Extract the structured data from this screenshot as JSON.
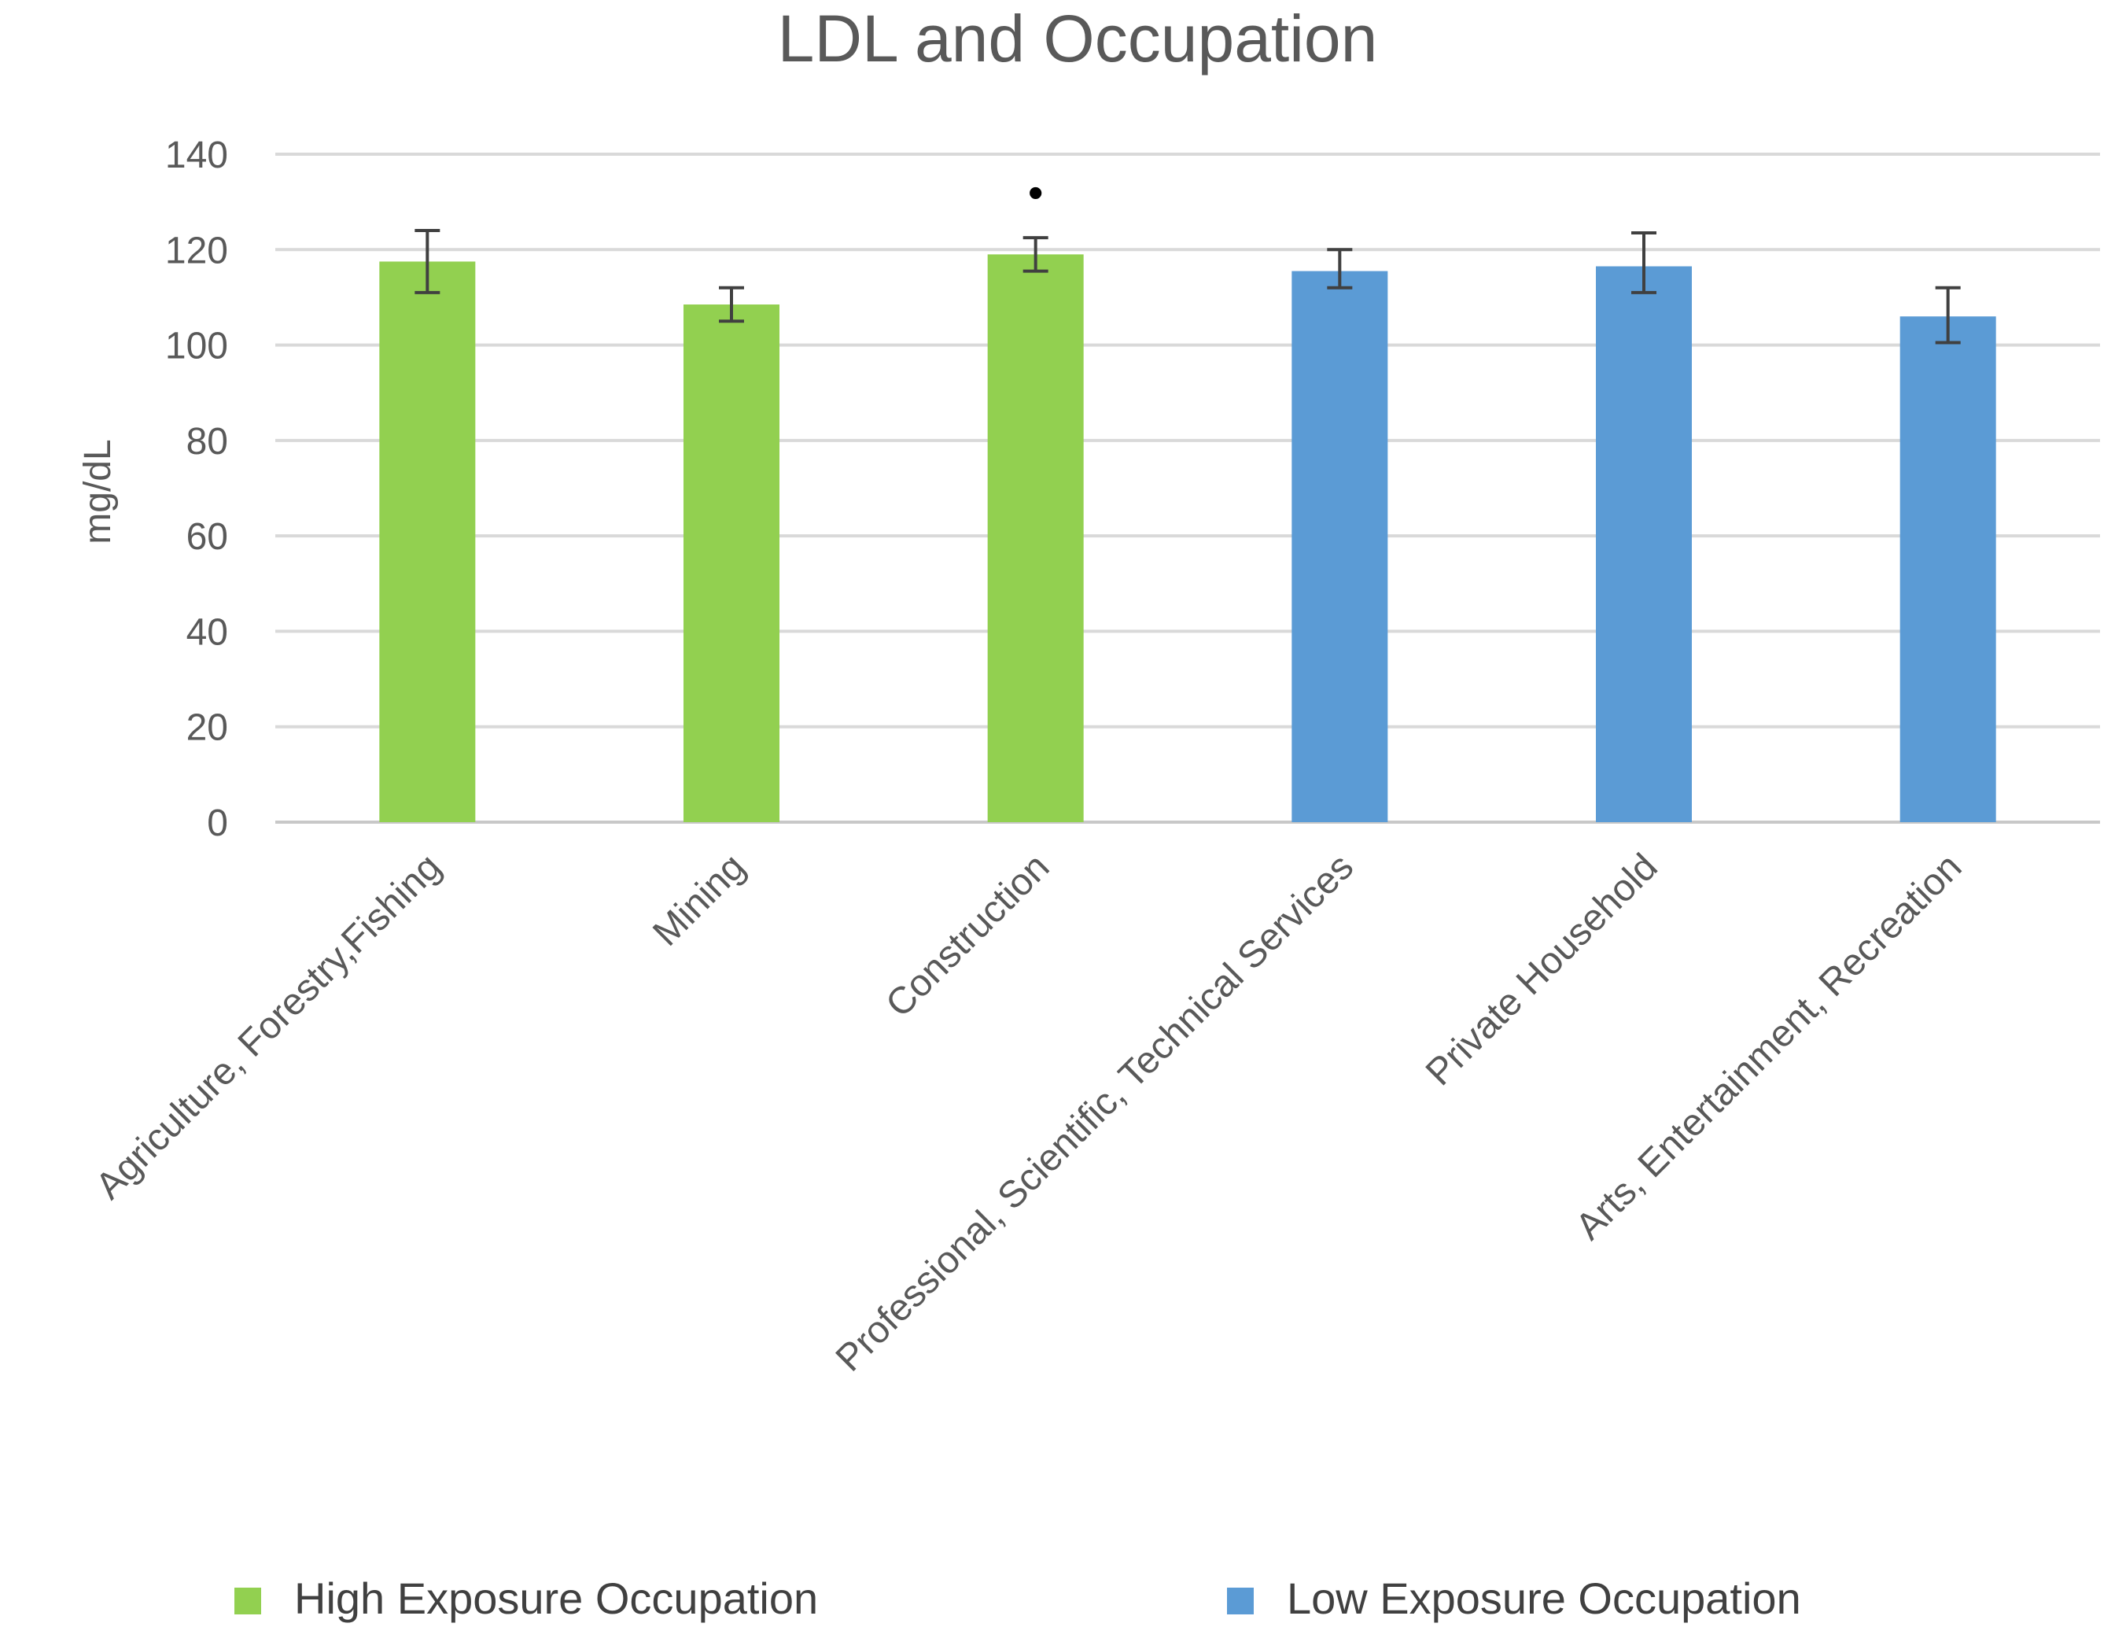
{
  "chart_data": {
    "type": "bar",
    "title": "LDL and Occupation",
    "xlabel": "",
    "ylabel": "mg/dL",
    "ylim": [
      0,
      140
    ],
    "yticks": [
      0,
      20,
      40,
      60,
      80,
      100,
      120,
      140
    ],
    "grid": true,
    "legend_position": "bottom",
    "categories": [
      "Agriculture, Forestry,Fishing",
      "Mining",
      "Construction",
      "Professional, Scientific, Technical Services",
      "Private Household",
      "Arts, Entertainment, Recreation"
    ],
    "values": [
      117.5,
      108.5,
      119,
      115.5,
      116.5,
      106
    ],
    "error_low": [
      111,
      105,
      115.5,
      112,
      111,
      100.5
    ],
    "error_high": [
      124,
      112,
      122.5,
      120,
      123.5,
      112
    ],
    "group": [
      "high",
      "high",
      "high",
      "low",
      "low",
      "low"
    ],
    "significance_marker": "•",
    "significance_index": 2,
    "series": [
      {
        "key": "high",
        "name": "High Exposure Occupation",
        "color": "#92d050"
      },
      {
        "key": "low",
        "name": "Low Exposure Occupation",
        "color": "#5b9bd5"
      }
    ]
  }
}
